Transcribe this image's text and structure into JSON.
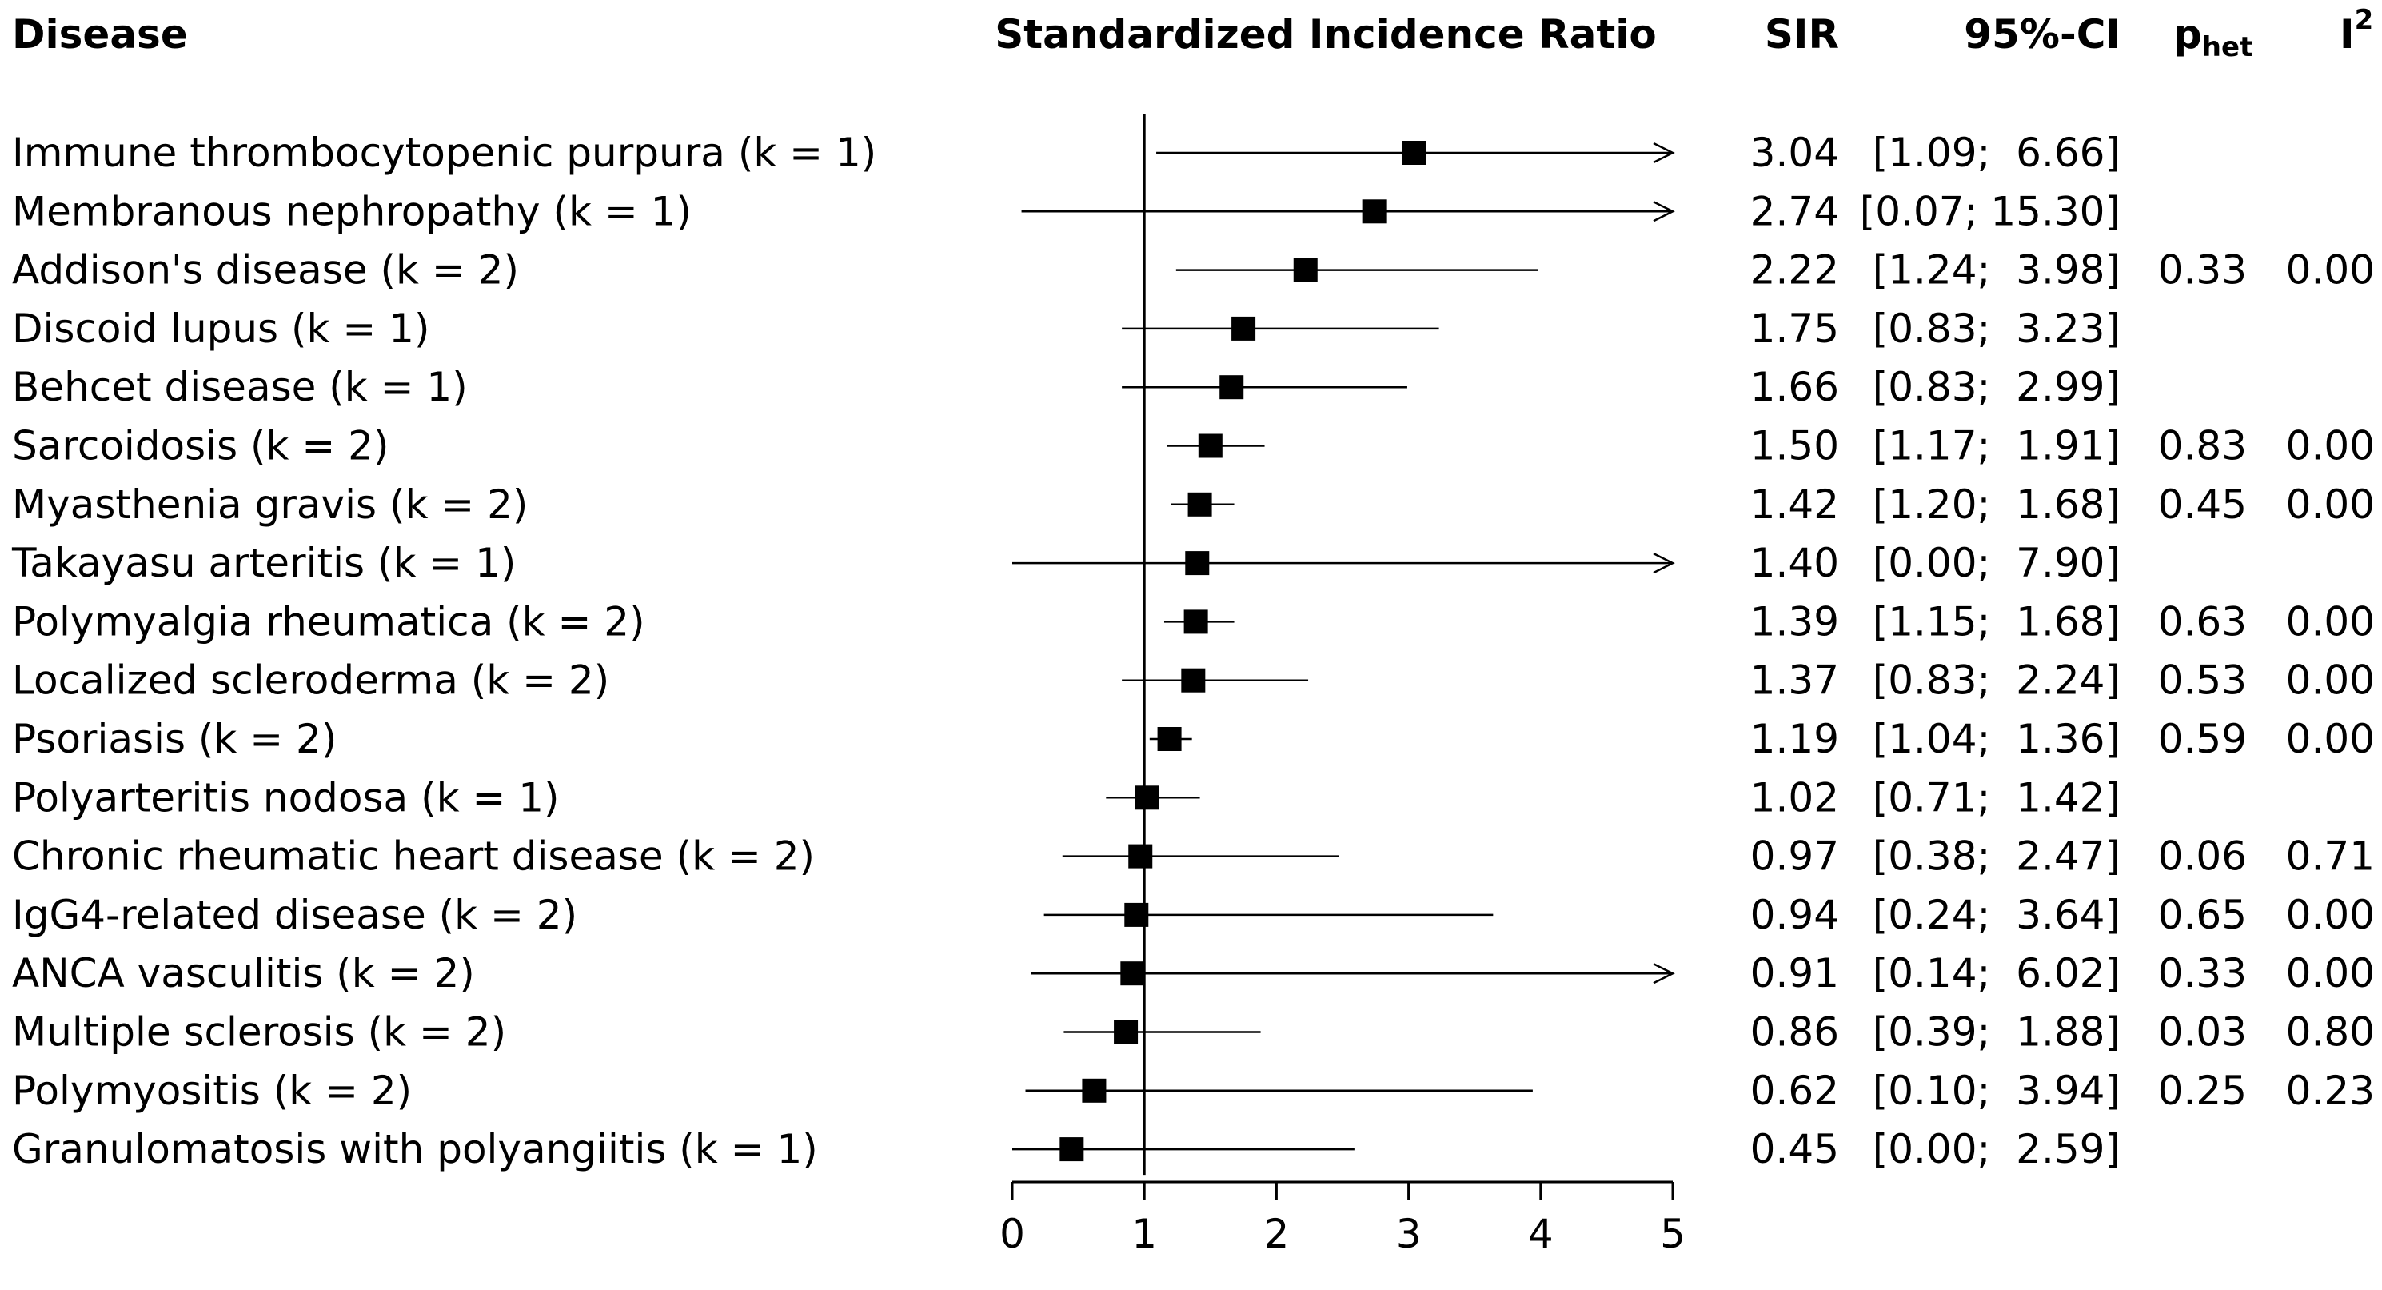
{
  "chart_data": {
    "type": "forest",
    "headers": {
      "disease": "Disease",
      "plot": "Standardized Incidence Ratio",
      "sir": "SIR",
      "ci": "95%-CI",
      "phet_main": "p",
      "phet_sub": "het",
      "i2_main": "I",
      "i2_sup": "2"
    },
    "reference_line": 1,
    "xlim": [
      0,
      5
    ],
    "x_ticks": [
      0,
      1,
      2,
      3,
      4,
      5
    ],
    "rows": [
      {
        "label": "Immune thrombocytopenic purpura (k = 1)",
        "sir": 3.04,
        "lower": 1.09,
        "upper": 6.66,
        "sir_text": "3.04",
        "ci_text": "[1.09;  6.66]",
        "p_het": "",
        "i2": ""
      },
      {
        "label": "Membranous nephropathy (k = 1)",
        "sir": 2.74,
        "lower": 0.07,
        "upper": 15.3,
        "sir_text": "2.74",
        "ci_text": "[0.07; 15.30]",
        "p_het": "",
        "i2": ""
      },
      {
        "label": "Addison's disease (k = 2)",
        "sir": 2.22,
        "lower": 1.24,
        "upper": 3.98,
        "sir_text": "2.22",
        "ci_text": "[1.24;  3.98]",
        "p_het": "0.33",
        "i2": "0.00"
      },
      {
        "label": "Discoid lupus (k = 1)",
        "sir": 1.75,
        "lower": 0.83,
        "upper": 3.23,
        "sir_text": "1.75",
        "ci_text": "[0.83;  3.23]",
        "p_het": "",
        "i2": ""
      },
      {
        "label": "Behcet disease (k = 1)",
        "sir": 1.66,
        "lower": 0.83,
        "upper": 2.99,
        "sir_text": "1.66",
        "ci_text": "[0.83;  2.99]",
        "p_het": "",
        "i2": ""
      },
      {
        "label": "Sarcoidosis (k = 2)",
        "sir": 1.5,
        "lower": 1.17,
        "upper": 1.91,
        "sir_text": "1.50",
        "ci_text": "[1.17;  1.91]",
        "p_het": "0.83",
        "i2": "0.00"
      },
      {
        "label": "Myasthenia gravis (k = 2)",
        "sir": 1.42,
        "lower": 1.2,
        "upper": 1.68,
        "sir_text": "1.42",
        "ci_text": "[1.20;  1.68]",
        "p_het": "0.45",
        "i2": "0.00"
      },
      {
        "label": "Takayasu arteritis (k = 1)",
        "sir": 1.4,
        "lower": 0.0,
        "upper": 7.9,
        "sir_text": "1.40",
        "ci_text": "[0.00;  7.90]",
        "p_het": "",
        "i2": ""
      },
      {
        "label": "Polymyalgia rheumatica (k = 2)",
        "sir": 1.39,
        "lower": 1.15,
        "upper": 1.68,
        "sir_text": "1.39",
        "ci_text": "[1.15;  1.68]",
        "p_het": "0.63",
        "i2": "0.00"
      },
      {
        "label": "Localized scleroderma (k = 2)",
        "sir": 1.37,
        "lower": 0.83,
        "upper": 2.24,
        "sir_text": "1.37",
        "ci_text": "[0.83;  2.24]",
        "p_het": "0.53",
        "i2": "0.00"
      },
      {
        "label": "Psoriasis (k = 2)",
        "sir": 1.19,
        "lower": 1.04,
        "upper": 1.36,
        "sir_text": "1.19",
        "ci_text": "[1.04;  1.36]",
        "p_het": "0.59",
        "i2": "0.00"
      },
      {
        "label": "Polyarteritis nodosa (k = 1)",
        "sir": 1.02,
        "lower": 0.71,
        "upper": 1.42,
        "sir_text": "1.02",
        "ci_text": "[0.71;  1.42]",
        "p_het": "",
        "i2": ""
      },
      {
        "label": "Chronic rheumatic heart disease (k = 2)",
        "sir": 0.97,
        "lower": 0.38,
        "upper": 2.47,
        "sir_text": "0.97",
        "ci_text": "[0.38;  2.47]",
        "p_het": "0.06",
        "i2": "0.71"
      },
      {
        "label": "IgG4-related disease (k = 2)",
        "sir": 0.94,
        "lower": 0.24,
        "upper": 3.64,
        "sir_text": "0.94",
        "ci_text": "[0.24;  3.64]",
        "p_het": "0.65",
        "i2": "0.00"
      },
      {
        "label": "ANCA vasculitis (k = 2)",
        "sir": 0.91,
        "lower": 0.14,
        "upper": 6.02,
        "sir_text": "0.91",
        "ci_text": "[0.14;  6.02]",
        "p_het": "0.33",
        "i2": "0.00"
      },
      {
        "label": "Multiple sclerosis (k = 2)",
        "sir": 0.86,
        "lower": 0.39,
        "upper": 1.88,
        "sir_text": "0.86",
        "ci_text": "[0.39;  1.88]",
        "p_het": "0.03",
        "i2": "0.80"
      },
      {
        "label": "Polymyositis (k = 2)",
        "sir": 0.62,
        "lower": 0.1,
        "upper": 3.94,
        "sir_text": "0.62",
        "ci_text": "[0.10;  3.94]",
        "p_het": "0.25",
        "i2": "0.23"
      },
      {
        "label": "Granulomatosis with polyangiitis (k = 1)",
        "sir": 0.45,
        "lower": 0.0,
        "upper": 2.59,
        "sir_text": "0.45",
        "ci_text": "[0.00;  2.59]",
        "p_het": "",
        "i2": ""
      }
    ]
  }
}
